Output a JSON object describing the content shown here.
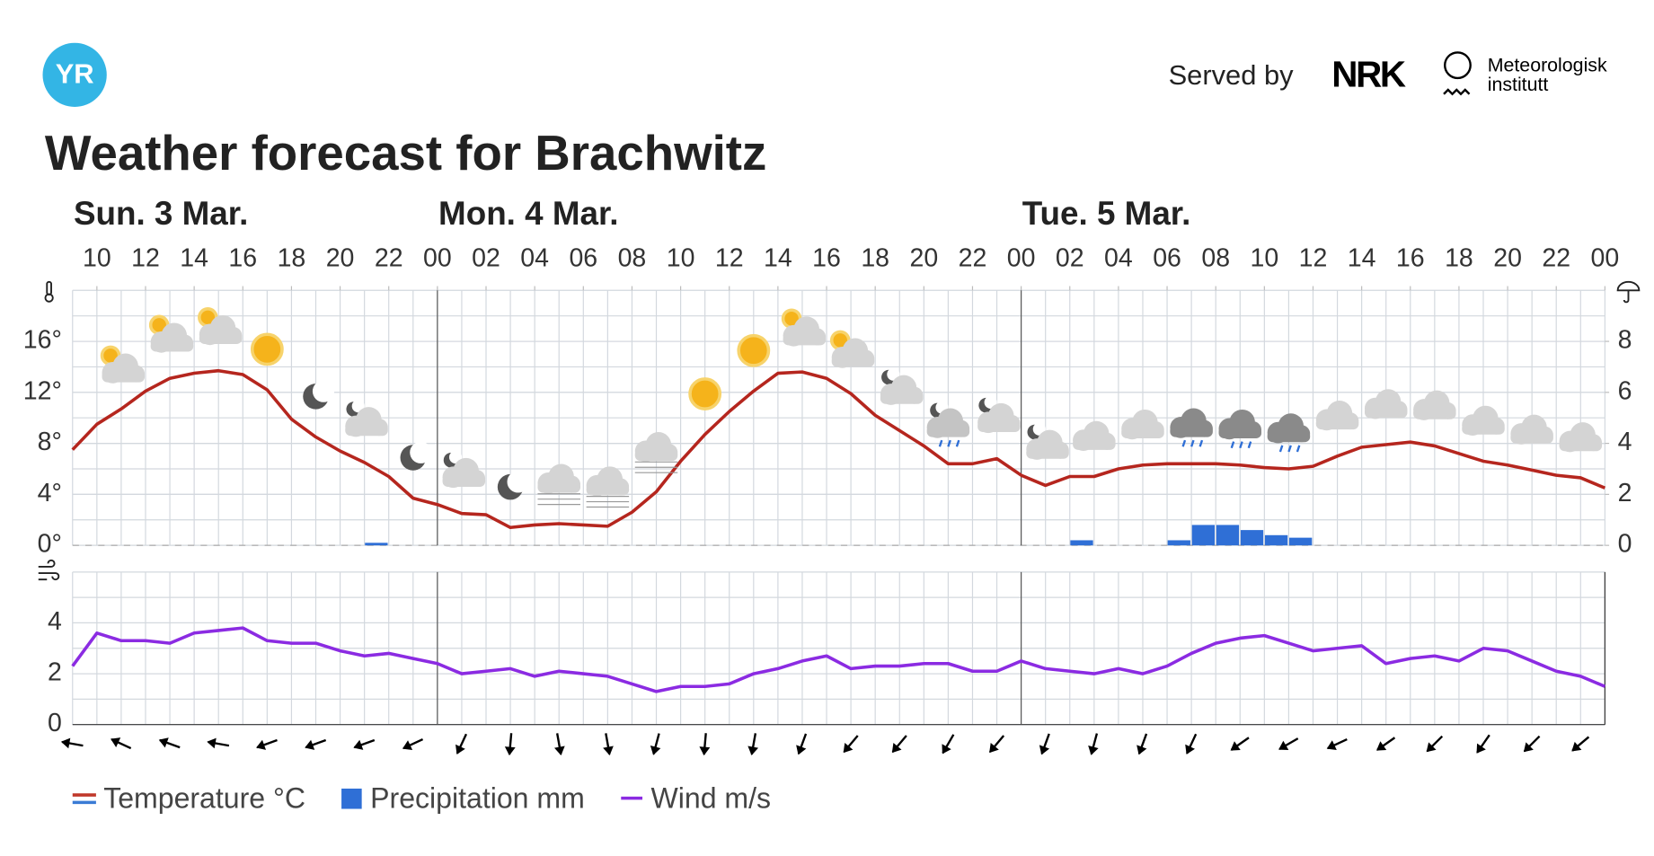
{
  "header": {
    "logo": "YR",
    "served_by": "Served by",
    "nrk": "NRK",
    "met": [
      "Meteorologisk",
      "institutt"
    ],
    "title": "Weather forecast for Brachwitz"
  },
  "chart_data": [
    {
      "type": "line",
      "x": [
        9,
        10,
        11,
        12,
        13,
        14,
        15,
        16,
        17,
        18,
        19,
        20,
        21,
        22,
        23,
        24,
        25,
        26,
        27,
        28,
        29,
        30,
        31,
        32,
        33,
        34,
        35,
        36,
        37,
        38,
        39,
        40,
        41,
        42,
        43,
        44,
        45,
        46,
        47,
        48,
        49,
        50,
        51,
        52,
        53,
        54,
        55,
        56,
        57,
        58,
        59,
        60,
        61,
        62,
        63,
        64,
        65,
        66,
        67,
        68,
        69,
        70,
        71,
        72
      ],
      "series": [
        {
          "name": "Temperature °C",
          "color": "#b5261e",
          "values": [
            7.5,
            9.5,
            10.7,
            12.1,
            13.1,
            13.5,
            13.7,
            13.4,
            12.2,
            9.9,
            8.5,
            7.4,
            6.5,
            5.4,
            3.7,
            3.2,
            2.5,
            2.4,
            1.4,
            1.6,
            1.7,
            1.6,
            1.5,
            2.6,
            4.2,
            6.6,
            8.7,
            10.5,
            12.1,
            13.5,
            13.6,
            13.1,
            11.9,
            10.2,
            9.0,
            7.8,
            6.4,
            6.4,
            6.8,
            5.5,
            4.7,
            5.4,
            5.4,
            6.0,
            6.3,
            6.4,
            6.4,
            6.4,
            6.3,
            6.1,
            6.0,
            6.2,
            7.0,
            7.7,
            7.9,
            8.1,
            7.8,
            7.2,
            6.6,
            6.3,
            5.9,
            5.5,
            5.3,
            4.5
          ]
        },
        {
          "name": "Precipitation mm",
          "color": "#2f6fd6",
          "type": "bar",
          "axis": "y2",
          "x": [
            21,
            50,
            54,
            55,
            56,
            57,
            58,
            59
          ],
          "values": [
            0.1,
            0.2,
            0.2,
            0.8,
            0.8,
            0.6,
            0.4,
            0.3
          ]
        }
      ],
      "days": [
        {
          "value": 9,
          "label": "Sun. 3 Mar."
        },
        {
          "value": 24,
          "label": "Mon. 4 Mar."
        },
        {
          "value": 48,
          "label": "Tue. 5 Mar."
        }
      ],
      "xlim": [
        9,
        72
      ],
      "xticks": [
        10,
        12,
        14,
        16,
        18,
        20,
        22,
        {
          "value": 24,
          "label": "00"
        },
        {
          "value": 26,
          "label": "02"
        },
        {
          "value": 28,
          "label": "04"
        },
        {
          "value": 30,
          "label": "06"
        },
        {
          "value": 32,
          "label": "08"
        },
        {
          "value": 34,
          "label": "10"
        },
        {
          "value": 36,
          "label": "12"
        },
        {
          "value": 38,
          "label": "14"
        },
        {
          "value": 40,
          "label": "16"
        },
        {
          "value": 42,
          "label": "18"
        },
        {
          "value": 44,
          "label": "20"
        },
        {
          "value": 46,
          "label": "22"
        },
        {
          "value": 48,
          "label": "00"
        },
        {
          "value": 50,
          "label": "02"
        },
        {
          "value": 52,
          "label": "04"
        },
        {
          "value": 54,
          "label": "06"
        },
        {
          "value": 56,
          "label": "08"
        },
        {
          "value": 58,
          "label": "10"
        },
        {
          "value": 60,
          "label": "12"
        },
        {
          "value": 62,
          "label": "14"
        },
        {
          "value": 64,
          "label": "16"
        },
        {
          "value": 66,
          "label": "18"
        },
        {
          "value": 68,
          "label": "20"
        },
        {
          "value": 70,
          "label": "22"
        },
        {
          "value": 72,
          "label": "00"
        }
      ],
      "ylim": [
        0,
        20
      ],
      "yticks": [
        {
          "value": 0,
          "label": "0°"
        },
        {
          "value": 4,
          "label": "4°"
        },
        {
          "value": 8,
          "label": "8°"
        },
        {
          "value": 12,
          "label": "12°"
        },
        {
          "value": 16,
          "label": "16°"
        }
      ],
      "y2lim": [
        0,
        10
      ],
      "y2ticks": [
        0,
        2,
        4,
        6,
        8
      ],
      "grid": true
    },
    {
      "type": "line",
      "x": [
        9,
        10,
        11,
        12,
        13,
        14,
        15,
        16,
        17,
        18,
        19,
        20,
        21,
        22,
        23,
        24,
        25,
        26,
        27,
        28,
        29,
        30,
        31,
        32,
        33,
        34,
        35,
        36,
        37,
        38,
        39,
        40,
        41,
        42,
        43,
        44,
        45,
        46,
        47,
        48,
        49,
        50,
        51,
        52,
        53,
        54,
        55,
        56,
        57,
        58,
        59,
        60,
        61,
        62,
        63,
        64,
        65,
        66,
        67,
        68,
        69,
        70,
        71,
        72
      ],
      "series": [
        {
          "name": "Wind m/s",
          "color": "#8b2be2",
          "values": [
            2.3,
            3.6,
            3.3,
            3.3,
            3.2,
            3.6,
            3.7,
            3.8,
            3.3,
            3.2,
            3.2,
            2.9,
            2.7,
            2.8,
            2.6,
            2.4,
            2.0,
            2.1,
            2.2,
            1.9,
            2.1,
            2.0,
            1.9,
            1.6,
            1.3,
            1.5,
            1.5,
            1.6,
            2.0,
            2.2,
            2.5,
            2.7,
            2.2,
            2.3,
            2.3,
            2.4,
            2.4,
            2.1,
            2.1,
            2.5,
            2.2,
            2.1,
            2.0,
            2.2,
            2.0,
            2.3,
            2.8,
            3.2,
            3.4,
            3.5,
            3.2,
            2.9,
            3.0,
            3.1,
            2.4,
            2.6,
            2.7,
            2.5,
            3.0,
            2.9,
            2.5,
            2.1,
            1.9,
            1.5
          ]
        }
      ],
      "wind_direction": {
        "x": [
          9,
          11,
          13,
          15,
          17,
          19,
          21,
          23,
          25,
          27,
          29,
          31,
          33,
          35,
          37,
          39,
          41,
          43,
          45,
          47,
          49,
          51,
          53,
          55,
          57,
          59,
          61,
          63,
          65,
          67,
          69,
          71
        ],
        "values": [
          280,
          295,
          290,
          280,
          250,
          250,
          250,
          245,
          205,
          185,
          170,
          170,
          195,
          185,
          190,
          200,
          220,
          220,
          210,
          220,
          200,
          195,
          200,
          205,
          235,
          240,
          245,
          235,
          225,
          215,
          225,
          230
        ]
      },
      "xlim": [
        9,
        72
      ],
      "ylim": [
        0,
        6
      ],
      "yticks": [
        0,
        2,
        4
      ],
      "grid": true
    }
  ]
}
